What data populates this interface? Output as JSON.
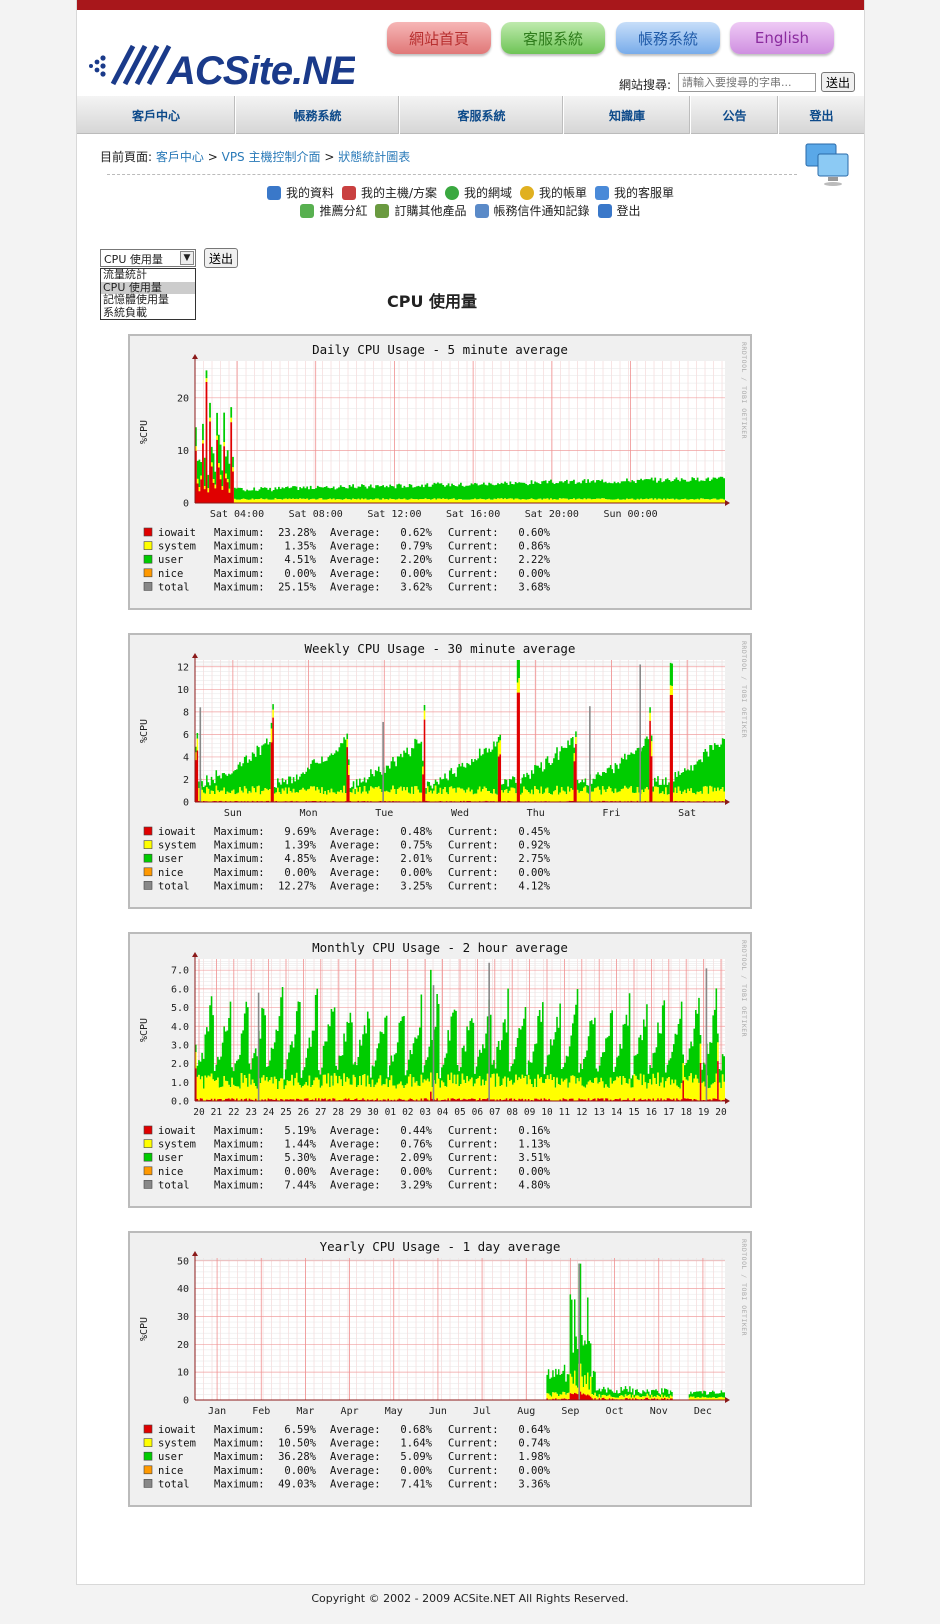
{
  "header": {
    "pills": [
      {
        "label": "網站首頁",
        "from": "#f6b6b6",
        "to": "#e07878",
        "color": "#b83030"
      },
      {
        "label": "客服系統",
        "from": "#bfeaae",
        "to": "#6ec456",
        "color": "#2f7d1c"
      },
      {
        "label": "帳務系統",
        "from": "#c7def9",
        "to": "#78acea",
        "color": "#1f5aa8"
      },
      {
        "label": "English",
        "from": "#efcaf5",
        "to": "#cf8fe0",
        "color": "#8a2b9e"
      }
    ],
    "search_label": "網站搜尋:",
    "search_placeholder": "請輸入要搜尋的字串...",
    "search_button": "送出"
  },
  "nav": [
    "客戶中心",
    "帳務系統",
    "客服系統",
    "知識庫",
    "公告",
    "登出"
  ],
  "breadcrumb": {
    "label": "目前頁面:",
    "items": [
      "客戶中心",
      "VPS 主機控制介面",
      "狀態統計圖表"
    ],
    "sep": ">"
  },
  "quicklinks": {
    "row1": [
      {
        "label": "我的資料",
        "color": "#3a78c9"
      },
      {
        "label": "我的主機/方案",
        "color": "#c94040"
      },
      {
        "label": "我的網域",
        "color": "#3aa840"
      },
      {
        "label": "我的帳單",
        "color": "#e0b020"
      },
      {
        "label": "我的客服單",
        "color": "#4a8ad8"
      }
    ],
    "row2": [
      {
        "label": "推薦分紅",
        "color": "#58b050"
      },
      {
        "label": "訂購其他產品",
        "color": "#6a9a40"
      },
      {
        "label": "帳務信件通知記錄",
        "color": "#5a8ac8"
      },
      {
        "label": "登出",
        "color": "#3a78c9"
      }
    ]
  },
  "selector": {
    "value": "CPU 使用量",
    "options": [
      "流量統計",
      "CPU 使用量",
      "記憶體使用量",
      "系統負載"
    ],
    "selected_index": 1,
    "button": "送出"
  },
  "page_title": "CPU 使用量",
  "watermark": "RRDTOOL / TOBI OETIKER",
  "legend_colors": {
    "iowait": "#e00000",
    "system": "#ffff00",
    "user": "#00cc00",
    "nice": "#ff9900",
    "total": "#888888"
  },
  "chart_data": [
    {
      "type": "area",
      "title": "Daily CPU Usage - 5 minute average",
      "ylabel": "%CPU",
      "yticks": [
        "0",
        "10",
        "20"
      ],
      "ylim": [
        0,
        27
      ],
      "xticks": [
        "Sat 04:00",
        "Sat 08:00",
        "Sat 12:00",
        "Sat 16:00",
        "Sat 20:00",
        "Sun 00:00"
      ],
      "pattern": "daily",
      "legend": [
        {
          "name": "iowait",
          "max": "23.28%",
          "avg": "0.62%",
          "cur": "0.60%"
        },
        {
          "name": "system",
          "max": "1.35%",
          "avg": "0.79%",
          "cur": "0.86%"
        },
        {
          "name": "user",
          "max": "4.51%",
          "avg": "2.20%",
          "cur": "2.22%"
        },
        {
          "name": "nice",
          "max": "0.00%",
          "avg": "0.00%",
          "cur": "0.00%"
        },
        {
          "name": "total",
          "max": "25.15%",
          "avg": "3.62%",
          "cur": "3.68%"
        }
      ]
    },
    {
      "type": "area",
      "title": "Weekly CPU Usage - 30 minute average",
      "ylabel": "%CPU",
      "yticks": [
        "0",
        "2",
        "4",
        "6",
        "8",
        "10",
        "12"
      ],
      "ylim": [
        0,
        12.6
      ],
      "xticks": [
        "Sun",
        "Mon",
        "Tue",
        "Wed",
        "Thu",
        "Fri",
        "Sat"
      ],
      "pattern": "weekly",
      "legend": [
        {
          "name": "iowait",
          "max": "9.69%",
          "avg": "0.48%",
          "cur": "0.45%"
        },
        {
          "name": "system",
          "max": "1.39%",
          "avg": "0.75%",
          "cur": "0.92%"
        },
        {
          "name": "user",
          "max": "4.85%",
          "avg": "2.01%",
          "cur": "2.75%"
        },
        {
          "name": "nice",
          "max": "0.00%",
          "avg": "0.00%",
          "cur": "0.00%"
        },
        {
          "name": "total",
          "max": "12.27%",
          "avg": "3.25%",
          "cur": "4.12%"
        }
      ]
    },
    {
      "type": "area",
      "title": "Monthly CPU Usage - 2 hour average",
      "ylabel": "%CPU",
      "yticks": [
        "0.0",
        "1.0",
        "2.0",
        "3.0",
        "4.0",
        "5.0",
        "6.0",
        "7.0"
      ],
      "ylim": [
        0,
        7.6
      ],
      "xticks": [
        "20",
        "21",
        "22",
        "23",
        "24",
        "25",
        "26",
        "27",
        "28",
        "29",
        "30",
        "01",
        "02",
        "03",
        "04",
        "05",
        "06",
        "07",
        "08",
        "09",
        "10",
        "11",
        "12",
        "13",
        "14",
        "15",
        "16",
        "17",
        "18",
        "19",
        "20"
      ],
      "pattern": "monthly",
      "legend": [
        {
          "name": "iowait",
          "max": "5.19%",
          "avg": "0.44%",
          "cur": "0.16%"
        },
        {
          "name": "system",
          "max": "1.44%",
          "avg": "0.76%",
          "cur": "1.13%"
        },
        {
          "name": "user",
          "max": "5.30%",
          "avg": "2.09%",
          "cur": "3.51%"
        },
        {
          "name": "nice",
          "max": "0.00%",
          "avg": "0.00%",
          "cur": "0.00%"
        },
        {
          "name": "total",
          "max": "7.44%",
          "avg": "3.29%",
          "cur": "4.80%"
        }
      ]
    },
    {
      "type": "area",
      "title": "Yearly CPU Usage - 1 day average",
      "ylabel": "%CPU",
      "yticks": [
        "0",
        "10",
        "20",
        "30",
        "40",
        "50"
      ],
      "ylim": [
        0,
        51
      ],
      "xticks": [
        "Jan",
        "Feb",
        "Mar",
        "Apr",
        "May",
        "Jun",
        "Jul",
        "Aug",
        "Sep",
        "Oct",
        "Nov",
        "Dec"
      ],
      "pattern": "yearly",
      "legend": [
        {
          "name": "iowait",
          "max": "6.59%",
          "avg": "0.68%",
          "cur": "0.64%"
        },
        {
          "name": "system",
          "max": "10.50%",
          "avg": "1.64%",
          "cur": "0.74%"
        },
        {
          "name": "user",
          "max": "36.28%",
          "avg": "5.09%",
          "cur": "1.98%"
        },
        {
          "name": "nice",
          "max": "0.00%",
          "avg": "0.00%",
          "cur": "0.00%"
        },
        {
          "name": "total",
          "max": "49.03%",
          "avg": "7.41%",
          "cur": "3.36%"
        }
      ]
    }
  ],
  "legend_labels": {
    "max": "Maximum:",
    "avg": "Average:",
    "cur": "Current:"
  },
  "footer": "Copyright © 2002 - 2009 ACSite.NET All Rights Reserved."
}
